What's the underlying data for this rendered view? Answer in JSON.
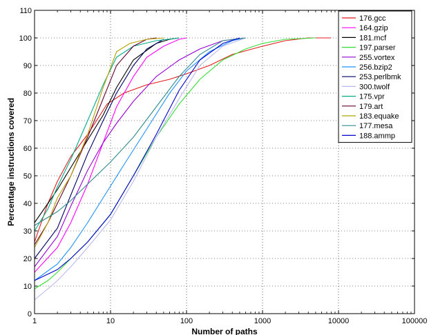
{
  "chart_data": {
    "type": "line",
    "title": "",
    "xlabel": "Number of paths",
    "ylabel": "Percentage instructions covered",
    "xscale": "log",
    "xlim": [
      1,
      100000
    ],
    "ylim": [
      0,
      110
    ],
    "xticks": [
      1,
      10,
      100,
      1000,
      10000,
      100000
    ],
    "xtick_labels": [
      "1",
      "10",
      "100",
      "1000",
      "10000",
      "100000"
    ],
    "yticks": [
      0,
      10,
      20,
      30,
      40,
      50,
      60,
      70,
      80,
      90,
      100,
      110
    ],
    "ytick_labels": [
      "0",
      "10",
      "20",
      "30",
      "40",
      "50",
      "60",
      "70",
      "80",
      "90",
      "100",
      "110"
    ],
    "grid": true,
    "legend_position": "top-right",
    "series": [
      {
        "name": "176.gcc",
        "color": "#e31a1c",
        "x": [
          1,
          1.5,
          2,
          3,
          5,
          9,
          15,
          30,
          60,
          100,
          200,
          400,
          1000,
          2000,
          4000,
          8000
        ],
        "y": [
          26,
          40,
          48,
          57,
          65,
          76,
          80,
          83,
          85,
          87,
          90,
          94,
          97,
          99,
          100,
          100
        ]
      },
      {
        "name": "164.gzip",
        "color": "#ff00ff",
        "x": [
          1,
          2,
          3,
          5,
          8,
          12,
          20,
          30,
          50,
          80,
          100
        ],
        "y": [
          15,
          24,
          33,
          47,
          62,
          75,
          86,
          93,
          97,
          99.5,
          100
        ]
      },
      {
        "name": "181.mcf",
        "color": "#000000",
        "x": [
          1,
          1.5,
          2,
          3,
          5,
          8,
          12,
          20,
          40,
          60,
          80
        ],
        "y": [
          33,
          40,
          45,
          53,
          63,
          72,
          82,
          92,
          98,
          99.5,
          100
        ]
      },
      {
        "name": "197.parser",
        "color": "#33dd33",
        "x": [
          1,
          1.5,
          2,
          3,
          5,
          10,
          20,
          40,
          80,
          150,
          300,
          600,
          1000,
          2000,
          5000
        ],
        "y": [
          9,
          12,
          15,
          20,
          26,
          36,
          50,
          64,
          76,
          85,
          92,
          96,
          98,
          99.5,
          100
        ]
      },
      {
        "name": "255.vortex",
        "color": "#9400d3",
        "x": [
          1,
          2,
          3,
          5,
          8,
          12,
          20,
          40,
          80,
          150,
          300,
          600
        ],
        "y": [
          17,
          28,
          39,
          52,
          62,
          69,
          77,
          86,
          92,
          96,
          99,
          100
        ]
      },
      {
        "name": "256.bzip2",
        "color": "#1e90ff",
        "x": [
          1,
          2,
          3,
          5,
          8,
          15,
          30,
          60,
          100,
          200,
          400,
          600
        ],
        "y": [
          12,
          18,
          24,
          33,
          42,
          54,
          67,
          80,
          88,
          95,
          99,
          100
        ]
      },
      {
        "name": "253.perlbmk",
        "color": "#000066",
        "x": [
          1,
          2,
          3,
          5,
          8,
          12,
          20,
          30,
          50
        ],
        "y": [
          20,
          31,
          43,
          58,
          70,
          80,
          90,
          96,
          99.5
        ]
      },
      {
        "name": "300.twolf",
        "color": "#b8b8f0",
        "x": [
          1,
          1.5,
          2,
          3,
          5,
          10,
          20,
          40,
          80,
          150,
          300,
          600
        ],
        "y": [
          5,
          9,
          12,
          17,
          24,
          34,
          48,
          64,
          78,
          90,
          97,
          100
        ]
      },
      {
        "name": "175.vpr",
        "color": "#00aa88",
        "x": [
          1,
          1.5,
          2,
          3,
          5,
          8,
          12,
          20,
          40,
          80
        ],
        "y": [
          30,
          38,
          46,
          56,
          70,
          83,
          93,
          97,
          99,
          100
        ]
      },
      {
        "name": "179.art",
        "color": "#660033",
        "x": [
          1,
          1.5,
          2,
          3,
          5,
          8,
          12,
          20,
          30,
          40
        ],
        "y": [
          25,
          33,
          40,
          50,
          64,
          78,
          90,
          97,
          99.5,
          100
        ]
      },
      {
        "name": "183.equake",
        "color": "#b8a000",
        "x": [
          1,
          1.5,
          2,
          3,
          5,
          8,
          12,
          18,
          30,
          50
        ],
        "y": [
          24,
          33,
          42,
          50,
          65,
          82,
          95,
          98,
          99.5,
          100
        ]
      },
      {
        "name": "177.mesa",
        "color": "#2e8b8b",
        "x": [
          1,
          2,
          3,
          5,
          10,
          20,
          40,
          80,
          150,
          300,
          600
        ],
        "y": [
          32,
          37,
          41,
          47,
          55,
          64,
          75,
          86,
          94,
          99,
          100
        ]
      },
      {
        "name": "188.ammp",
        "color": "#0000cc",
        "x": [
          1,
          2,
          3,
          5,
          10,
          20,
          40,
          80,
          150,
          300,
          500
        ],
        "y": [
          12,
          16,
          20,
          26,
          36,
          50,
          65,
          81,
          92,
          98,
          100
        ]
      }
    ]
  }
}
